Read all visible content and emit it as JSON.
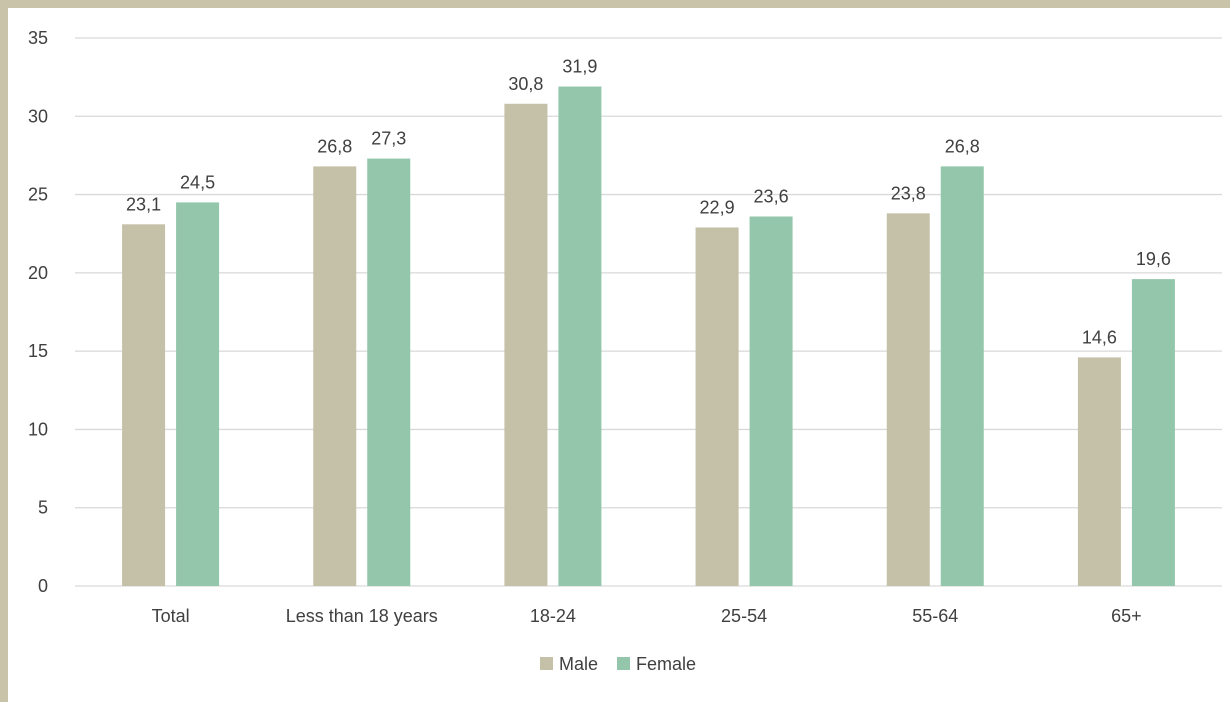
{
  "chart_data": {
    "type": "bar",
    "categories": [
      "Total",
      "Less than 18 years",
      "18-24",
      "25-54",
      "55-64",
      "65+"
    ],
    "series": [
      {
        "name": "Male",
        "color": "#c5c0a8",
        "values": [
          23.1,
          26.8,
          30.8,
          22.9,
          23.8,
          14.6
        ],
        "labels": [
          "23,1",
          "26,8",
          "30,8",
          "22,9",
          "23,8",
          "14,6"
        ]
      },
      {
        "name": "Female",
        "color": "#93c6ab",
        "values": [
          24.5,
          27.3,
          31.9,
          23.6,
          26.8,
          19.6
        ],
        "labels": [
          "24,5",
          "27,3",
          "31,9",
          "23,6",
          "26,8",
          "19,6"
        ]
      }
    ],
    "ylim": [
      0,
      35
    ],
    "yticks": [
      0,
      5,
      10,
      15,
      20,
      25,
      30,
      35
    ],
    "grid": true,
    "legend_position": "bottom",
    "frame_color": "#c9c3a9"
  }
}
